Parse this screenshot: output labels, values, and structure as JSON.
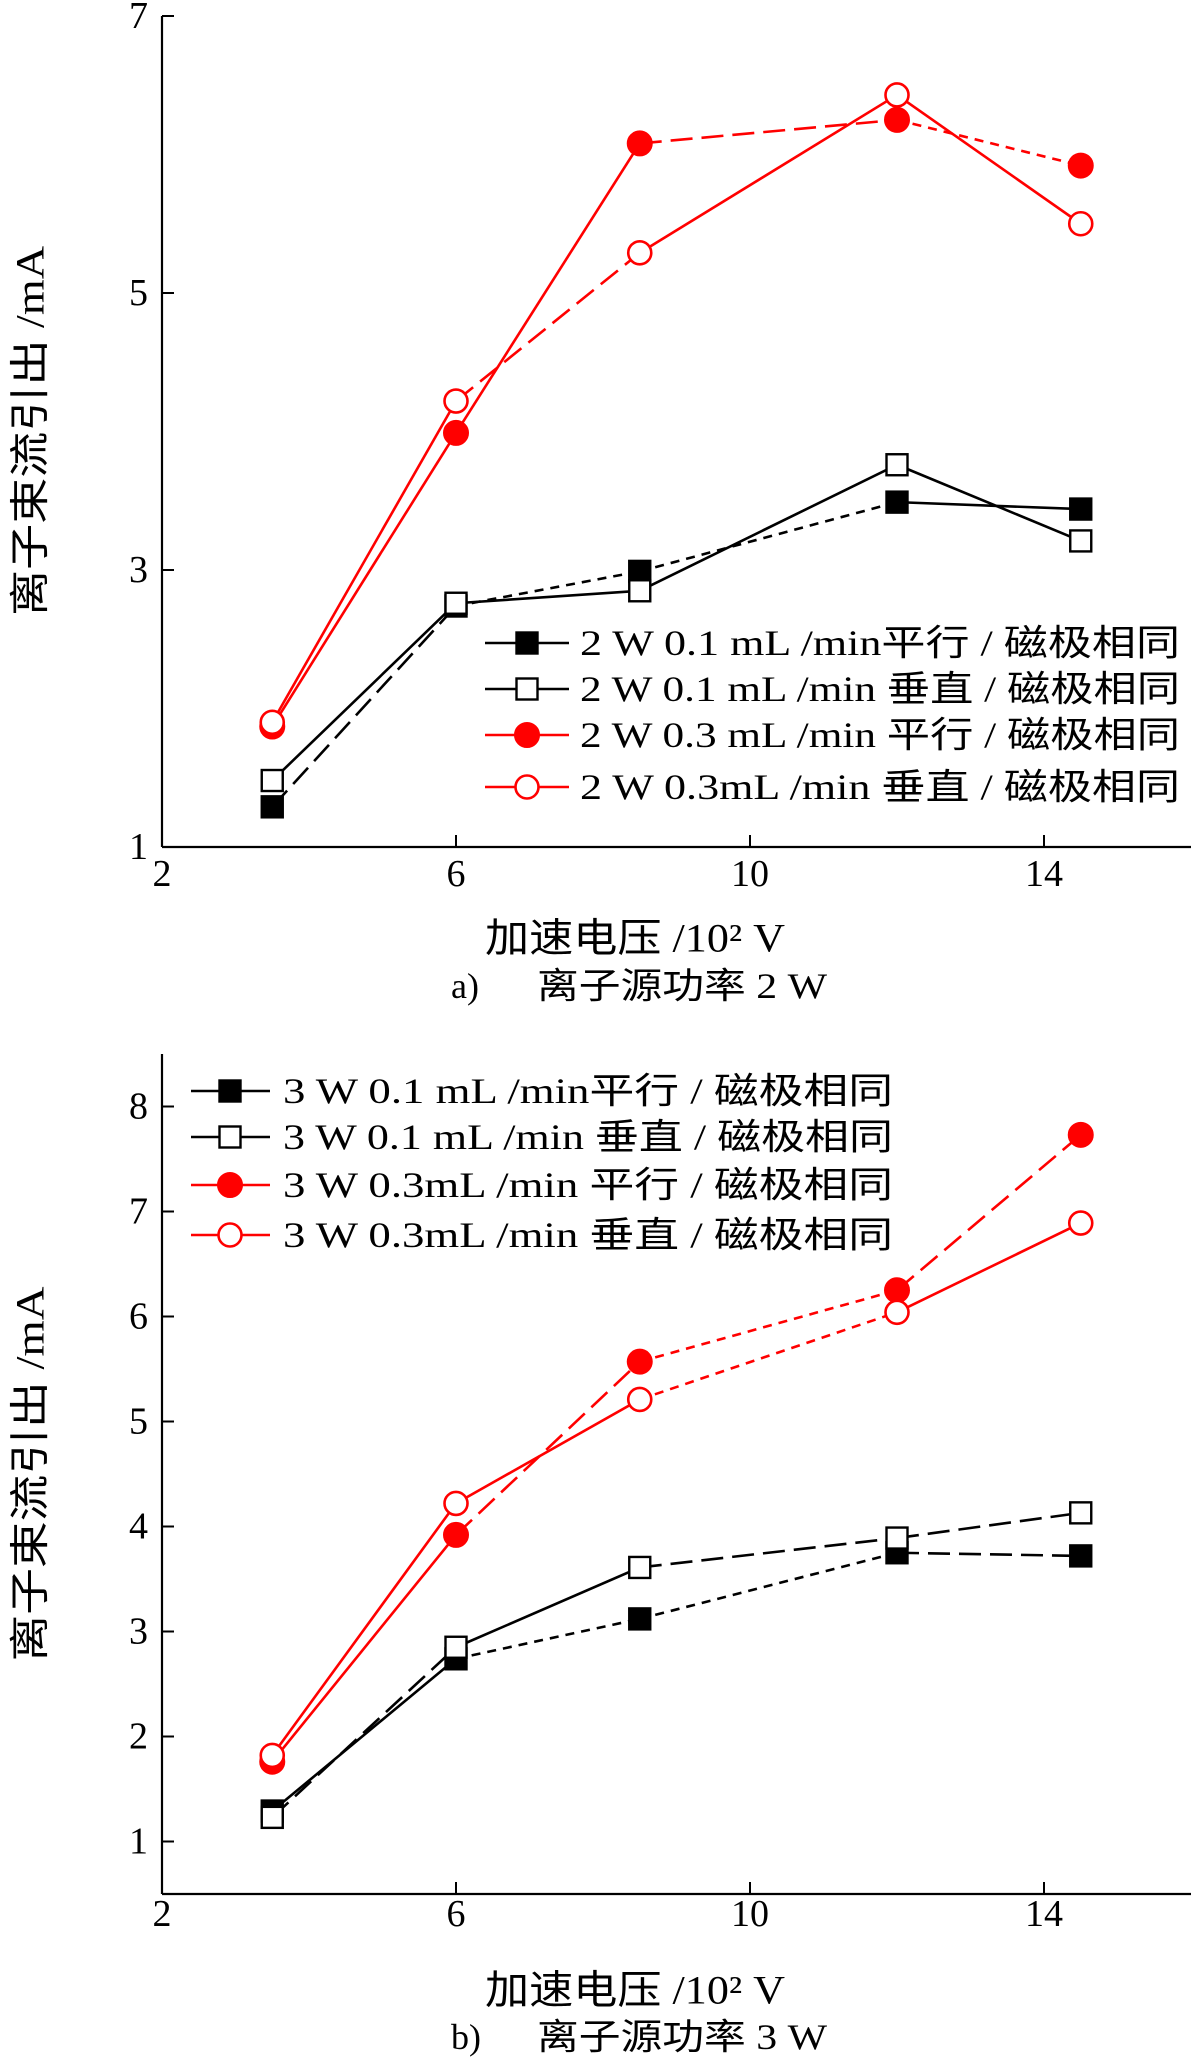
{
  "chart_data": [
    {
      "type": "line",
      "caption_label": "a)",
      "caption": "离子源功率 2 W",
      "xlabel": "加速电压 /10² V",
      "ylabel": "离子束流引出 /mA",
      "xlim": [
        2,
        16
      ],
      "ylim": [
        1,
        7
      ],
      "xticks": [
        2,
        6,
        10,
        14
      ],
      "yticks": [
        1,
        3,
        5,
        7
      ],
      "grid": false,
      "legend_position": "lower-right",
      "x": [
        3.5,
        6,
        8.5,
        12,
        14.5
      ],
      "series": [
        {
          "name": "2 W 0.1 mL /min平行 / 磁极相同",
          "values": [
            1.29,
            2.74,
            2.99,
            3.49,
            3.44
          ],
          "color": "#000000",
          "marker": "square",
          "filled": true
        },
        {
          "name": "2 W 0.1 mL /min 垂直 / 磁极相同",
          "values": [
            1.48,
            2.76,
            2.85,
            3.76,
            3.21
          ],
          "color": "#000000",
          "marker": "square",
          "filled": false
        },
        {
          "name": "2 W 0.3 mL /min 平行 / 磁极相同",
          "values": [
            1.87,
            3.99,
            6.08,
            6.25,
            5.92
          ],
          "color": "#ff0000",
          "marker": "circle",
          "filled": true
        },
        {
          "name": "2 W 0.3mL /min 垂直 / 磁极相同",
          "values": [
            1.9,
            4.22,
            5.29,
            6.43,
            5.5
          ],
          "color": "#ff0000",
          "marker": "circle",
          "filled": false
        }
      ]
    },
    {
      "type": "line",
      "caption_label": "b)",
      "caption": "离子源功率 3 W",
      "xlabel": "加速电压 /10² V",
      "ylabel": "离子束流引出 /mA",
      "xlim": [
        2,
        16
      ],
      "ylim": [
        0.5,
        8.5
      ],
      "xticks": [
        2,
        6,
        10,
        14
      ],
      "yticks": [
        1,
        2,
        3,
        4,
        5,
        6,
        7,
        8
      ],
      "grid": false,
      "legend_position": "upper-left",
      "x": [
        3.5,
        6,
        8.5,
        12,
        14.5
      ],
      "series": [
        {
          "name": "3 W 0.1 mL /min平行 / 磁极相同",
          "values": [
            1.29,
            2.74,
            3.12,
            3.75,
            3.72
          ],
          "color": "#000000",
          "marker": "square",
          "filled": true
        },
        {
          "name": "3 W 0.1 mL /min 垂直 / 磁极相同",
          "values": [
            1.23,
            2.85,
            3.61,
            3.89,
            4.13
          ],
          "color": "#000000",
          "marker": "square",
          "filled": false
        },
        {
          "name": "3 W 0.3mL /min 平行 / 磁极相同",
          "values": [
            1.76,
            3.92,
            5.57,
            6.25,
            7.73
          ],
          "color": "#ff0000",
          "marker": "circle",
          "filled": true
        },
        {
          "name": "3 W 0.3mL /min 垂直 / 磁极相同",
          "values": [
            1.82,
            4.22,
            5.21,
            6.04,
            6.89
          ],
          "color": "#ff0000",
          "marker": "circle",
          "filled": false
        }
      ]
    }
  ]
}
